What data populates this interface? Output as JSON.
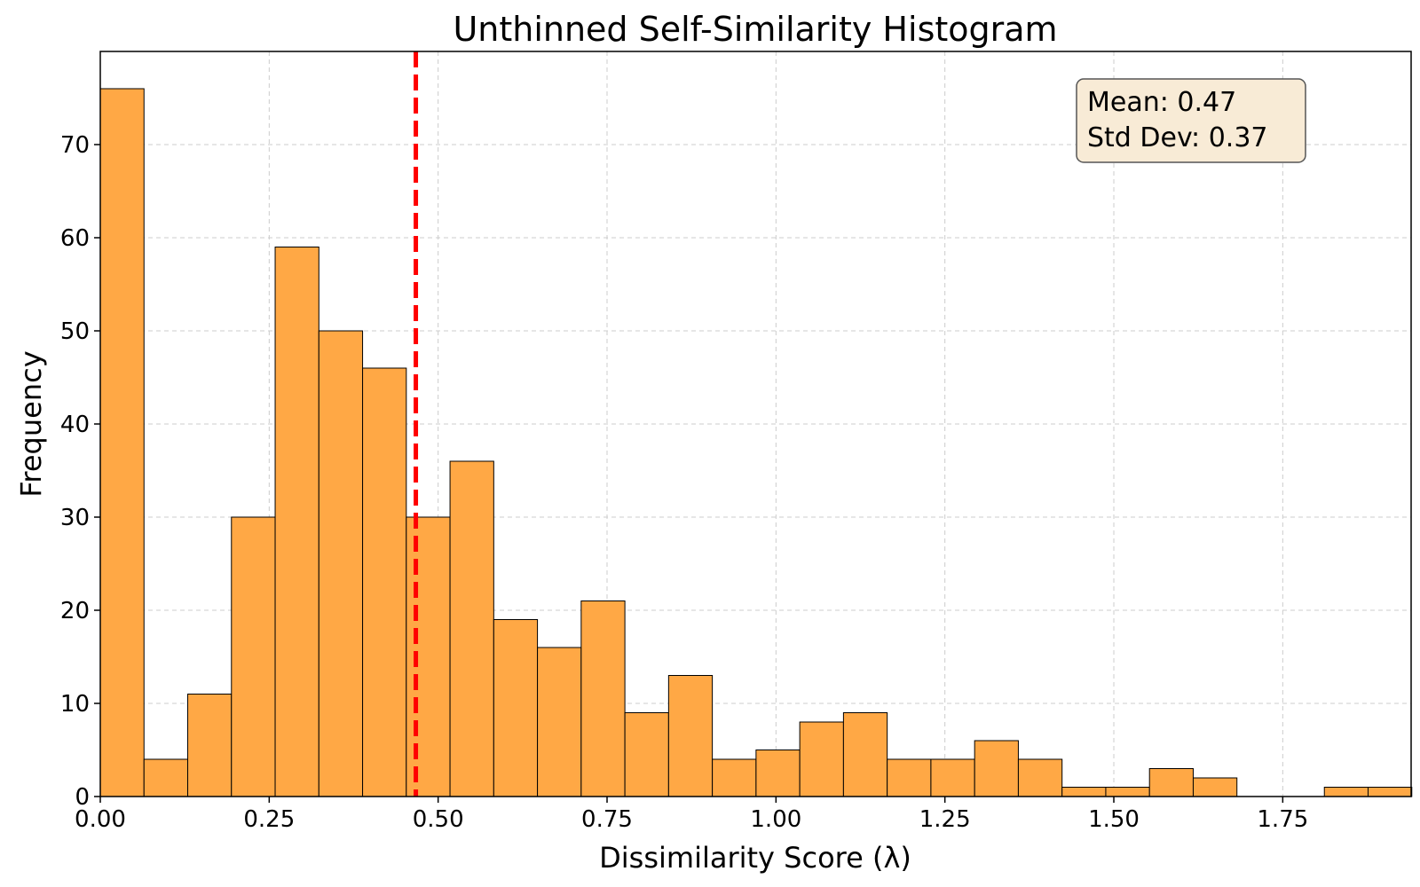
{
  "chart_data": {
    "type": "bar",
    "subtype": "histogram",
    "title": "Unthinned Self-Similarity Histogram",
    "xlabel": "Dissimilarity Score (λ)",
    "ylabel": "Frequency",
    "xlim": [
      0,
      1.94
    ],
    "ylim": [
      0,
      80
    ],
    "bin_width": 0.0647,
    "bins_start": 0,
    "values": [
      76,
      4,
      11,
      30,
      59,
      50,
      46,
      30,
      36,
      19,
      16,
      21,
      9,
      13,
      4,
      5,
      8,
      9,
      4,
      4,
      6,
      4,
      1,
      1,
      3,
      2,
      0,
      0,
      1,
      1
    ],
    "x_ticks": [
      0,
      0.25,
      0.5,
      0.75,
      1.0,
      1.25,
      1.5,
      1.75
    ],
    "x_tick_labels": [
      "0.00",
      "0.25",
      "0.50",
      "0.75",
      "1.00",
      "1.25",
      "1.50",
      "1.75"
    ],
    "y_ticks": [
      0,
      10,
      20,
      30,
      40,
      50,
      60,
      70
    ],
    "y_tick_labels": [
      "0",
      "10",
      "20",
      "30",
      "40",
      "50",
      "60",
      "70"
    ],
    "grid": true,
    "mean_line": {
      "value": 0.467,
      "style": "dashed"
    },
    "stats_box": {
      "mean_text": "Mean: 0.47",
      "std_text": "Std Dev: 0.37",
      "placement": "top-right"
    },
    "colors": {
      "bar_fill": "#FFA845",
      "bar_edge": "#000000",
      "mean_line": "#FF0000",
      "grid": "#cccccc",
      "stats_box_fill": "#F8EBD6",
      "stats_box_edge": "#555555"
    }
  }
}
